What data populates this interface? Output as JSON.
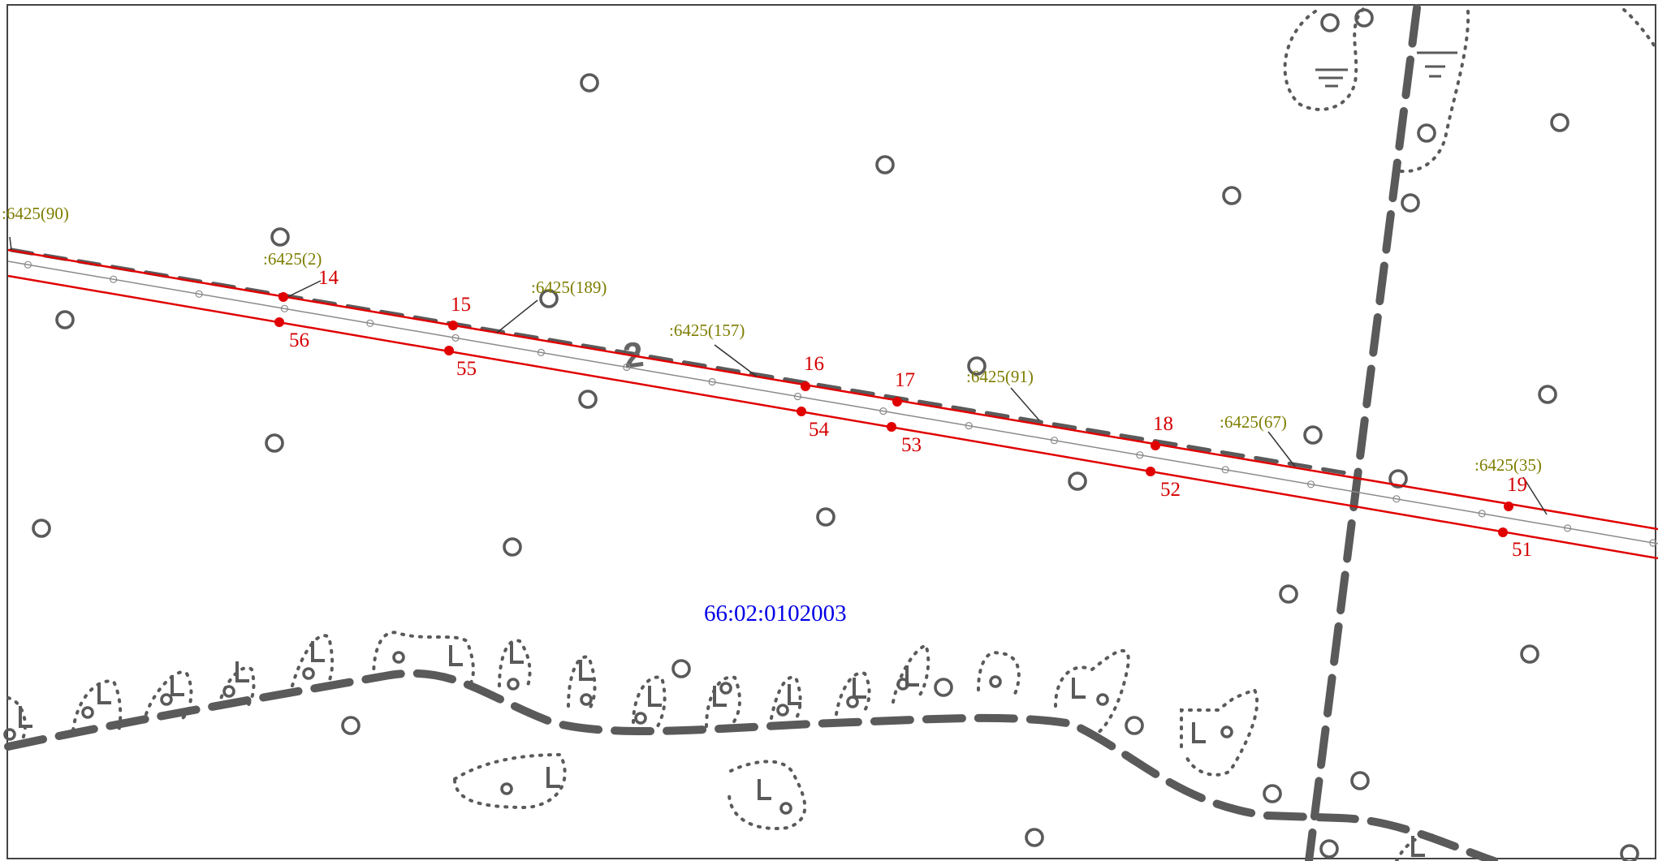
{
  "map": {
    "quarter_number": "66:02:0102003",
    "topo_label": "2",
    "parcel_labels": [
      ":6425(90)",
      ":6425(2)",
      ":6425(189)",
      ":6425(157)",
      ":6425(91)",
      ":6425(67)",
      ":6425(35)"
    ],
    "upper_points": [
      "14",
      "15",
      "16",
      "17",
      "18",
      "19"
    ],
    "lower_points": [
      "56",
      "55",
      "54",
      "53",
      "52",
      "51"
    ],
    "colors": {
      "boundary": "#e00000",
      "point_label": "#d40000",
      "parcel_label": "#7d7d00",
      "quarter_label": "#0000e6",
      "topo": "#5a5a5a"
    }
  }
}
